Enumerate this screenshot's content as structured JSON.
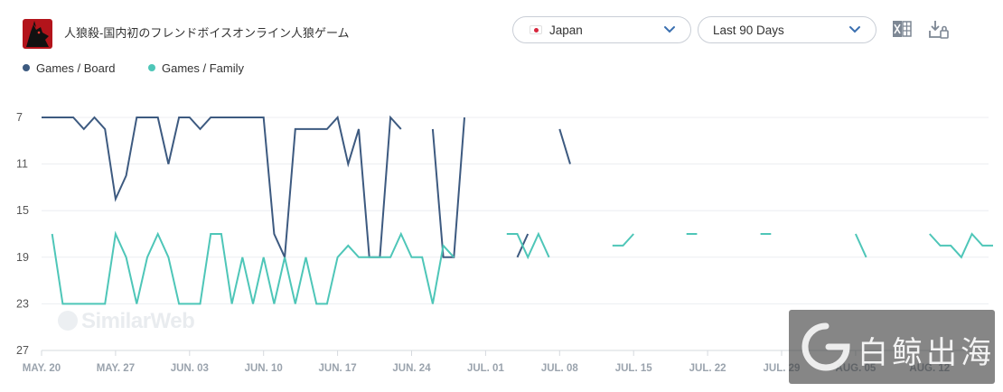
{
  "header": {
    "app_title": "人狼殺-国内初のフレンドボイスオンライン人狼ゲーム",
    "app_icon": "wolf-app-icon",
    "country_select": {
      "value": "Japan",
      "flag": "japan-flag-icon"
    },
    "range_select": {
      "value": "Last 90 Days"
    },
    "tools": [
      "excel-export-icon",
      "download-icon"
    ]
  },
  "legend": [
    {
      "label": "Games / Board",
      "color": "#3d5a80"
    },
    {
      "label": "Games / Family",
      "color": "#4ec6b8"
    }
  ],
  "watermarks": {
    "left": "SimilarWeb",
    "right": "白鲸出海"
  },
  "chart_data": {
    "type": "line",
    "y_inverted": true,
    "ylim": [
      7,
      27
    ],
    "y_ticks": [
      "7",
      "11",
      "15",
      "19",
      "23",
      "27"
    ],
    "x_ticks": [
      "MAY. 20",
      "MAY. 27",
      "JUN. 03",
      "JUN. 10",
      "JUN. 17",
      "JUN. 24",
      "JUL. 01",
      "JUL. 08",
      "JUL. 15",
      "JUL. 22",
      "JUL. 29",
      "AUG. 05",
      "AUG. 12"
    ],
    "x_start": "MAY. 20",
    "grid": true,
    "series": [
      {
        "name": "Games / Board",
        "color": "#3d5a80",
        "values": [
          7,
          7,
          7,
          7,
          8,
          7,
          8,
          14,
          12,
          7,
          7,
          7,
          11,
          7,
          7,
          8,
          7,
          7,
          7,
          7,
          7,
          7,
          17,
          19,
          8,
          8,
          8,
          8,
          7,
          11,
          8,
          19,
          19,
          7,
          8,
          null,
          null,
          8,
          19,
          19,
          7,
          null,
          null,
          null,
          null,
          19,
          17,
          null,
          null,
          8,
          11
        ]
      },
      {
        "name": "Games / Family",
        "color": "#4ec6b8",
        "values": [
          null,
          17,
          23,
          23,
          23,
          23,
          23,
          17,
          19,
          23,
          19,
          17,
          19,
          23,
          23,
          23,
          17,
          17,
          23,
          19,
          23,
          19,
          23,
          19,
          23,
          19,
          23,
          23,
          19,
          18,
          19,
          19,
          19,
          19,
          17,
          19,
          19,
          23,
          18,
          19,
          null,
          null,
          null,
          null,
          17,
          17,
          19,
          17,
          19,
          null,
          null,
          null,
          null,
          null,
          18,
          18,
          17,
          null,
          null,
          null,
          null,
          17,
          17,
          null,
          null,
          null,
          null,
          null,
          17,
          17,
          null,
          null,
          null,
          null,
          null,
          null,
          null,
          17,
          19,
          null,
          null,
          null,
          null,
          null,
          17,
          18,
          18,
          19,
          17,
          18,
          18
        ]
      }
    ]
  }
}
